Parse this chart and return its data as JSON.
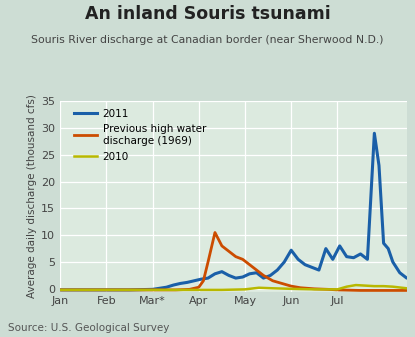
{
  "title": "An inland Souris tsunami",
  "subtitle": "Souris River discharge at Canadian border (near Sherwood N.D.)",
  "source": "Source: U.S. Geological Survey",
  "ylabel": "Average daily discharge (thousand cfs)",
  "xlabel_ticks": [
    "Jan",
    "Feb",
    "Mar*",
    "Apr",
    "May",
    "Jun",
    "Jul"
  ],
  "ylim": [
    -0.5,
    35
  ],
  "yticks": [
    0,
    5,
    10,
    15,
    20,
    25,
    30,
    35
  ],
  "xlim": [
    0,
    7.5
  ],
  "background_color": "#cdddd4",
  "plot_bg_color": "#dceadf",
  "title_color": "#222222",
  "subtitle_color": "#444444",
  "source_color": "#555555",
  "line_2011_color": "#1a5fa8",
  "line_1969_color": "#cc4c00",
  "line_2010_color": "#b8b800",
  "legend_labels": [
    "2011",
    "Previous high water\ndischarge (1969)",
    "2010"
  ],
  "x_2011": [
    0.0,
    0.5,
    1.0,
    1.5,
    2.0,
    2.15,
    2.3,
    2.45,
    2.6,
    2.75,
    2.9,
    3.05,
    3.2,
    3.35,
    3.5,
    3.65,
    3.8,
    3.95,
    4.1,
    4.25,
    4.4,
    4.55,
    4.7,
    4.85,
    5.0,
    5.15,
    5.3,
    5.45,
    5.6,
    5.75,
    5.9,
    6.05,
    6.2,
    6.35,
    6.5,
    6.65,
    6.8,
    6.9,
    7.0,
    7.1,
    7.2,
    7.35,
    7.5
  ],
  "y_2011": [
    -0.2,
    -0.2,
    -0.2,
    -0.2,
    -0.1,
    0.1,
    0.3,
    0.7,
    1.0,
    1.2,
    1.5,
    1.8,
    2.0,
    2.8,
    3.2,
    2.5,
    2.0,
    2.2,
    2.8,
    3.0,
    2.0,
    2.5,
    3.5,
    5.0,
    7.2,
    5.5,
    4.5,
    4.0,
    3.5,
    7.5,
    5.5,
    8.0,
    6.0,
    5.8,
    6.5,
    5.5,
    29.0,
    23.0,
    8.5,
    7.5,
    5.0,
    3.0,
    2.0
  ],
  "x_1969": [
    0.0,
    0.5,
    1.0,
    1.5,
    2.0,
    2.5,
    2.8,
    3.0,
    3.1,
    3.2,
    3.35,
    3.5,
    3.65,
    3.8,
    3.95,
    4.1,
    4.25,
    4.4,
    4.6,
    4.8,
    5.0,
    5.2,
    5.5,
    5.8,
    6.0,
    6.5,
    7.0,
    7.5
  ],
  "y_1969": [
    -0.2,
    -0.2,
    -0.2,
    -0.2,
    -0.2,
    -0.2,
    -0.1,
    0.3,
    1.5,
    5.0,
    10.5,
    8.0,
    7.0,
    6.0,
    5.5,
    4.5,
    3.5,
    2.5,
    1.5,
    1.0,
    0.5,
    0.2,
    0.0,
    -0.1,
    -0.2,
    -0.3,
    -0.3,
    -0.3
  ],
  "x_2010": [
    0.0,
    0.5,
    1.0,
    1.5,
    2.0,
    2.5,
    3.0,
    3.5,
    4.0,
    4.3,
    4.6,
    5.0,
    5.5,
    6.0,
    6.2,
    6.4,
    6.6,
    6.8,
    7.0,
    7.2,
    7.5
  ],
  "y_2010": [
    -0.2,
    -0.2,
    -0.2,
    -0.2,
    -0.2,
    -0.2,
    -0.2,
    -0.2,
    -0.1,
    0.2,
    0.1,
    0.0,
    -0.1,
    -0.1,
    0.4,
    0.7,
    0.6,
    0.5,
    0.5,
    0.4,
    0.1
  ]
}
